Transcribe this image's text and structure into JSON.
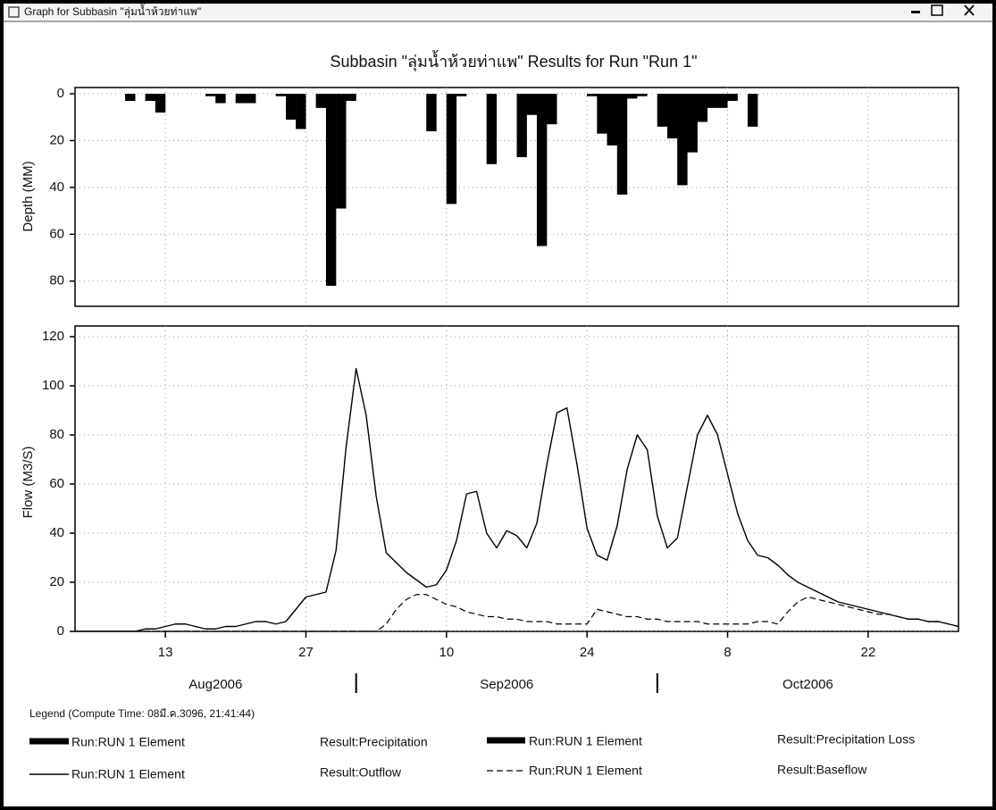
{
  "window": {
    "title": "Graph for Subbasin \"ลุ่มน้ำห้วยท่าแพ\""
  },
  "legend": {
    "title": "Legend (Compute Time: 08มี.ค.3096, 21:41:44)"
  },
  "chart_data": [
    {
      "type": "bar",
      "title": "Subbasin \"ลุ่มน้ำห้วยท่าแพ\" Results for Run \"Run 1\"",
      "ylabel": "Depth (MM)",
      "ylim": [
        0,
        90
      ],
      "y_inverted": true,
      "yticks": [
        0,
        20,
        40,
        60,
        80
      ],
      "grid": true,
      "xlim": [
        "2006-08-04",
        "2006-10-31"
      ],
      "x": [
        "2006-08-04",
        "2006-08-05",
        "2006-08-06",
        "2006-08-07",
        "2006-08-08",
        "2006-08-09",
        "2006-08-10",
        "2006-08-11",
        "2006-08-12",
        "2006-08-13",
        "2006-08-14",
        "2006-08-15",
        "2006-08-16",
        "2006-08-17",
        "2006-08-18",
        "2006-08-19",
        "2006-08-20",
        "2006-08-21",
        "2006-08-22",
        "2006-08-23",
        "2006-08-24",
        "2006-08-25",
        "2006-08-26",
        "2006-08-27",
        "2006-08-28",
        "2006-08-29",
        "2006-08-30",
        "2006-08-31",
        "2006-09-01",
        "2006-09-02",
        "2006-09-03",
        "2006-09-04",
        "2006-09-05",
        "2006-09-06",
        "2006-09-07",
        "2006-09-08",
        "2006-09-09",
        "2006-09-10",
        "2006-09-11",
        "2006-09-12",
        "2006-09-13",
        "2006-09-14",
        "2006-09-15",
        "2006-09-16",
        "2006-09-17",
        "2006-09-18",
        "2006-09-19",
        "2006-09-20",
        "2006-09-21",
        "2006-09-22",
        "2006-09-23",
        "2006-09-24",
        "2006-09-25",
        "2006-09-26",
        "2006-09-27",
        "2006-09-28",
        "2006-09-29",
        "2006-09-30",
        "2006-10-01",
        "2006-10-02",
        "2006-10-03",
        "2006-10-04",
        "2006-10-05",
        "2006-10-06",
        "2006-10-07",
        "2006-10-08",
        "2006-10-09",
        "2006-10-10",
        "2006-10-11",
        "2006-10-12",
        "2006-10-13",
        "2006-10-14",
        "2006-10-15",
        "2006-10-16",
        "2006-10-17",
        "2006-10-18",
        "2006-10-19",
        "2006-10-20",
        "2006-10-21",
        "2006-10-22",
        "2006-10-23",
        "2006-10-24",
        "2006-10-25",
        "2006-10-26",
        "2006-10-27",
        "2006-10-28",
        "2006-10-29",
        "2006-10-30",
        "2006-10-31"
      ],
      "series": [
        {
          "name": "Run:RUN 1 Element",
          "result": "Result:Precipitation",
          "color": "#000000",
          "style": "thick",
          "values": [
            0,
            0,
            0,
            0,
            0,
            3,
            0,
            3,
            8,
            0,
            0,
            0,
            0,
            1,
            4,
            0,
            4,
            4,
            0,
            0,
            1,
            11,
            15,
            0,
            6,
            82,
            49,
            3,
            0,
            0,
            0,
            0,
            0,
            0,
            0,
            16,
            0,
            47,
            1,
            0,
            0,
            30,
            0,
            0,
            27,
            9,
            65,
            13,
            0,
            0,
            0,
            1,
            17,
            22,
            43,
            2,
            1,
            0,
            14,
            19,
            39,
            25,
            12,
            6,
            6,
            3,
            0,
            14,
            0,
            0,
            0,
            0,
            0,
            0,
            0,
            0,
            0,
            0,
            0,
            0,
            0,
            0,
            0,
            0,
            0,
            0,
            0,
            0,
            0
          ]
        },
        {
          "name": "Run:RUN 1 Element",
          "result": "Result:Precipitation Loss",
          "color": "#000000",
          "style": "thick",
          "values": [
            0,
            0,
            0,
            0,
            0,
            3,
            0,
            3,
            8,
            0,
            0,
            0,
            0,
            1,
            4,
            0,
            4,
            4,
            0,
            0,
            1,
            11,
            15,
            0,
            6,
            82,
            49,
            3,
            0,
            0,
            0,
            0,
            0,
            0,
            0,
            16,
            0,
            47,
            1,
            0,
            0,
            30,
            0,
            0,
            27,
            9,
            65,
            13,
            0,
            0,
            0,
            1,
            17,
            22,
            43,
            2,
            1,
            0,
            14,
            19,
            39,
            25,
            12,
            6,
            6,
            3,
            0,
            14,
            0,
            0,
            0,
            0,
            0,
            0,
            0,
            0,
            0,
            0,
            0,
            0,
            0,
            0,
            0,
            0,
            0,
            0,
            0,
            0,
            0
          ]
        }
      ]
    },
    {
      "type": "line",
      "ylabel": "Flow (M3/S)",
      "ylim": [
        0,
        120
      ],
      "yticks": [
        0,
        20,
        40,
        60,
        80,
        100,
        120
      ],
      "grid": true,
      "xlim": [
        "2006-08-04",
        "2006-10-31"
      ],
      "xticks": [
        {
          "value": "2006-08-13",
          "label": "13"
        },
        {
          "value": "2006-08-27",
          "label": "27"
        },
        {
          "value": "2006-09-10",
          "label": "10"
        },
        {
          "value": "2006-09-24",
          "label": "24"
        },
        {
          "value": "2006-10-08",
          "label": "8"
        },
        {
          "value": "2006-10-22",
          "label": "22"
        }
      ],
      "month_labels": [
        {
          "value": "2006-08",
          "label": "Aug2006"
        },
        {
          "value": "2006-09",
          "label": "Sep2006"
        },
        {
          "value": "2006-10",
          "label": "Oct2006"
        }
      ],
      "x": [
        "2006-08-04",
        "2006-08-05",
        "2006-08-06",
        "2006-08-07",
        "2006-08-08",
        "2006-08-09",
        "2006-08-10",
        "2006-08-11",
        "2006-08-12",
        "2006-08-13",
        "2006-08-14",
        "2006-08-15",
        "2006-08-16",
        "2006-08-17",
        "2006-08-18",
        "2006-08-19",
        "2006-08-20",
        "2006-08-21",
        "2006-08-22",
        "2006-08-23",
        "2006-08-24",
        "2006-08-25",
        "2006-08-26",
        "2006-08-27",
        "2006-08-28",
        "2006-08-29",
        "2006-08-30",
        "2006-08-31",
        "2006-09-01",
        "2006-09-02",
        "2006-09-03",
        "2006-09-04",
        "2006-09-05",
        "2006-09-06",
        "2006-09-07",
        "2006-09-08",
        "2006-09-09",
        "2006-09-10",
        "2006-09-11",
        "2006-09-12",
        "2006-09-13",
        "2006-09-14",
        "2006-09-15",
        "2006-09-16",
        "2006-09-17",
        "2006-09-18",
        "2006-09-19",
        "2006-09-20",
        "2006-09-21",
        "2006-09-22",
        "2006-09-23",
        "2006-09-24",
        "2006-09-25",
        "2006-09-26",
        "2006-09-27",
        "2006-09-28",
        "2006-09-29",
        "2006-09-30",
        "2006-10-01",
        "2006-10-02",
        "2006-10-03",
        "2006-10-04",
        "2006-10-05",
        "2006-10-06",
        "2006-10-07",
        "2006-10-08",
        "2006-10-09",
        "2006-10-10",
        "2006-10-11",
        "2006-10-12",
        "2006-10-13",
        "2006-10-14",
        "2006-10-15",
        "2006-10-16",
        "2006-10-17",
        "2006-10-18",
        "2006-10-19",
        "2006-10-20",
        "2006-10-21",
        "2006-10-22",
        "2006-10-23",
        "2006-10-24",
        "2006-10-25",
        "2006-10-26",
        "2006-10-27",
        "2006-10-28",
        "2006-10-29",
        "2006-10-30",
        "2006-10-31"
      ],
      "series": [
        {
          "name": "Run:RUN 1 Element",
          "result": "Result:Outflow",
          "color": "#000000",
          "style": "solid",
          "values": [
            0,
            0,
            0,
            0,
            0,
            0,
            0,
            1,
            1,
            2,
            3,
            3,
            2,
            1,
            1,
            2,
            2,
            3,
            4,
            4,
            3,
            4,
            9,
            14,
            15,
            16,
            33,
            75,
            107,
            88,
            55,
            32,
            28,
            24,
            21,
            18,
            19,
            25,
            37,
            56,
            57,
            40,
            34,
            41,
            39,
            34,
            44,
            68,
            89,
            91,
            68,
            42,
            31,
            29,
            43,
            66,
            80,
            74,
            47,
            34,
            38,
            59,
            80,
            88,
            80,
            64,
            48,
            37,
            31,
            30,
            27,
            23,
            20,
            18,
            16,
            14,
            12,
            11,
            10,
            9,
            8,
            7,
            6,
            5,
            5,
            4,
            4,
            3,
            2
          ]
        },
        {
          "name": "Run:RUN 1 Element",
          "result": "Result:Baseflow",
          "color": "#000000",
          "style": "dashed",
          "values": [
            0,
            0,
            0,
            0,
            0,
            0,
            0,
            0,
            0,
            0,
            0,
            0,
            0,
            0,
            0,
            0,
            0,
            0,
            0,
            0,
            0,
            0,
            0,
            0,
            0,
            0,
            0,
            0,
            0,
            0,
            0,
            3,
            9,
            13,
            15,
            15,
            13,
            11,
            10,
            8,
            7,
            6,
            6,
            5,
            5,
            4,
            4,
            4,
            3,
            3,
            3,
            3,
            9,
            8,
            7,
            6,
            6,
            5,
            5,
            4,
            4,
            4,
            4,
            3,
            3,
            3,
            3,
            3,
            4,
            4,
            3,
            8,
            12,
            14,
            13,
            12,
            11,
            10,
            9,
            8,
            7,
            7,
            6,
            5,
            5,
            4,
            4,
            3,
            2
          ]
        }
      ]
    }
  ]
}
